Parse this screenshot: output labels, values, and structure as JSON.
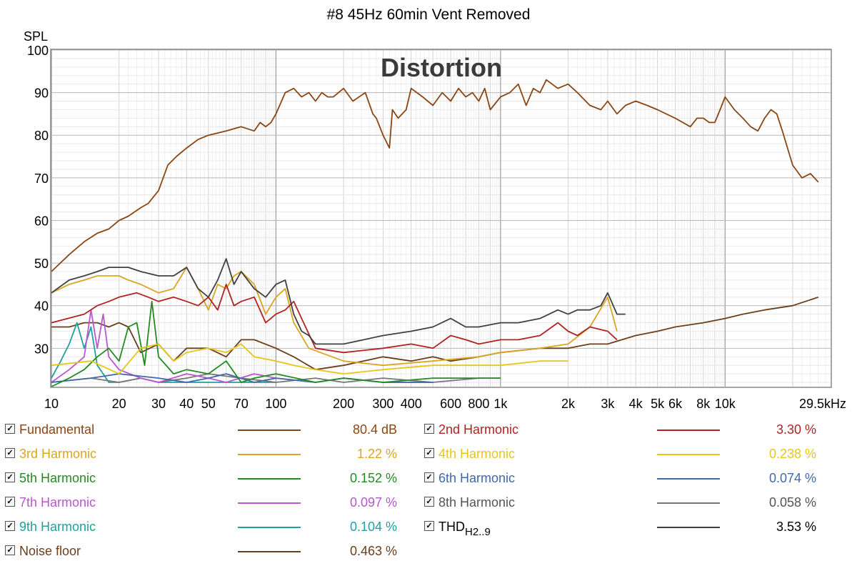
{
  "chart_data": {
    "type": "line",
    "title": "#8 45Hz 60min Vent Removed",
    "watermark": "Distortion",
    "ylabel": "SPL",
    "xlabel": "",
    "x_scale": "log",
    "xlim": [
      10,
      29500
    ],
    "ylim": [
      21,
      100
    ],
    "y_ticks": [
      100,
      90,
      80,
      70,
      60,
      50,
      40,
      30
    ],
    "x_ticks": [
      {
        "v": 10,
        "label": "10"
      },
      {
        "v": 20,
        "label": "20"
      },
      {
        "v": 30,
        "label": "30"
      },
      {
        "v": 40,
        "label": "40"
      },
      {
        "v": 50,
        "label": "50"
      },
      {
        "v": 70,
        "label": "70"
      },
      {
        "v": 100,
        "label": "100"
      },
      {
        "v": 200,
        "label": "200"
      },
      {
        "v": 300,
        "label": "300"
      },
      {
        "v": 400,
        "label": "400"
      },
      {
        "v": 600,
        "label": "600"
      },
      {
        "v": 800,
        "label": "800"
      },
      {
        "v": 1000,
        "label": "1k"
      },
      {
        "v": 2000,
        "label": "2k"
      },
      {
        "v": 3000,
        "label": "3k"
      },
      {
        "v": 4000,
        "label": "4k"
      },
      {
        "v": 5000,
        "label": "5k"
      },
      {
        "v": 6000,
        "label": "6k"
      },
      {
        "v": 8000,
        "label": "8k"
      },
      {
        "v": 10000,
        "label": "10k"
      },
      {
        "v": 29500,
        "label": "29.5kHz"
      }
    ],
    "grid": true,
    "series": [
      {
        "name": "Fundamental",
        "color": "#8B4513",
        "x": [
          10,
          12,
          14,
          16,
          18,
          20,
          22,
          25,
          27,
          30,
          33,
          36,
          40,
          45,
          50,
          60,
          70,
          80,
          85,
          90,
          95,
          100,
          110,
          120,
          130,
          140,
          150,
          160,
          170,
          180,
          200,
          220,
          250,
          270,
          280,
          300,
          320,
          330,
          350,
          380,
          400,
          450,
          500,
          550,
          600,
          650,
          700,
          750,
          800,
          850,
          900,
          1000,
          1100,
          1200,
          1300,
          1400,
          1500,
          1600,
          1800,
          2000,
          2200,
          2500,
          2800,
          3000,
          3300,
          3600,
          4000,
          4500,
          5000,
          6000,
          7000,
          7500,
          8000,
          8500,
          9000,
          9500,
          10000,
          11000,
          12000,
          13000,
          14000,
          15000,
          16000,
          17000,
          18000,
          20000,
          22000,
          24000,
          26000
        ],
        "y": [
          48,
          52,
          55,
          57,
          58,
          60,
          61,
          63,
          64,
          67,
          73,
          75,
          77,
          79,
          80,
          81,
          82,
          81,
          83,
          82,
          83,
          85,
          90,
          91,
          89,
          90,
          88,
          90,
          89,
          89,
          91,
          88,
          90,
          85,
          84,
          80,
          77,
          86,
          84,
          86,
          91,
          89,
          87,
          90,
          88,
          91,
          89,
          90,
          88,
          91,
          86,
          89,
          90,
          92,
          87,
          91,
          90,
          93,
          91,
          92,
          90,
          87,
          86,
          88,
          85,
          87,
          88,
          87,
          86,
          84,
          82,
          84,
          84,
          83,
          83,
          86,
          89,
          86,
          84,
          82,
          81,
          84,
          86,
          85,
          81,
          73,
          70,
          71,
          69
        ],
        "legend_value": "80.4 dB"
      },
      {
        "name": "2nd Harmonic",
        "color": "#B22222",
        "x": [
          10,
          14,
          16,
          18,
          20,
          24,
          27,
          30,
          35,
          40,
          45,
          50,
          55,
          60,
          65,
          70,
          80,
          90,
          100,
          110,
          120,
          130,
          150,
          200,
          300,
          400,
          500,
          600,
          700,
          800,
          1000,
          1200,
          1500,
          1800,
          2000,
          2200,
          2500,
          3000,
          3300
        ],
        "y": [
          36,
          38,
          40,
          41,
          42,
          43,
          42,
          41,
          42,
          41,
          40,
          42,
          39,
          45,
          40,
          41,
          42,
          36,
          38,
          39,
          41,
          37,
          30,
          29,
          30,
          31,
          30,
          33,
          32,
          31,
          32,
          32,
          33,
          36,
          34,
          33,
          35,
          34,
          32
        ],
        "legend_value": "3.30 %"
      },
      {
        "name": "3rd Harmonic",
        "color": "#DAA520",
        "x": [
          10,
          12,
          14,
          16,
          18,
          20,
          22,
          25,
          30,
          35,
          40,
          45,
          50,
          55,
          60,
          65,
          70,
          80,
          90,
          100,
          110,
          120,
          140,
          200,
          300,
          500,
          800,
          1000,
          1500,
          2000,
          2500,
          3000,
          3300
        ],
        "y": [
          43,
          45,
          46,
          47,
          47,
          47,
          46,
          45,
          43,
          44,
          49,
          44,
          39,
          45,
          44,
          47,
          48,
          45,
          38,
          42,
          44,
          36,
          30,
          27,
          26,
          27,
          28,
          29,
          30,
          31,
          35,
          42,
          34
        ],
        "legend_value": "1.22 %"
      },
      {
        "name": "4th Harmonic",
        "color": "#E6C619",
        "x": [
          10,
          15,
          20,
          25,
          30,
          35,
          40,
          50,
          60,
          70,
          80,
          100,
          120,
          150,
          200,
          300,
          500,
          800,
          1000,
          1500,
          2000
        ],
        "y": [
          26,
          27,
          24,
          30,
          31,
          27,
          29,
          30,
          29,
          31,
          28,
          27,
          26,
          25,
          24,
          25,
          26,
          26,
          26,
          27,
          27
        ],
        "legend_value": "0.238 %"
      },
      {
        "name": "5th Harmonic",
        "color": "#228B22",
        "x": [
          10,
          12,
          14,
          16,
          18,
          20,
          22,
          24,
          26,
          28,
          30,
          35,
          40,
          50,
          60,
          70,
          80,
          100,
          150,
          200,
          300,
          500,
          1000
        ],
        "y": [
          21,
          23,
          25,
          28,
          30,
          27,
          35,
          36,
          26,
          41,
          28,
          24,
          25,
          24,
          27,
          22,
          23,
          24,
          22,
          23,
          22,
          23,
          23
        ],
        "legend_value": "0.152 %"
      },
      {
        "name": "6th Harmonic",
        "color": "#4169A8",
        "x": [
          10,
          15,
          20,
          30,
          40,
          50,
          60,
          80,
          100,
          150,
          200,
          300,
          500
        ],
        "y": [
          22,
          23,
          24,
          23,
          22,
          23,
          24,
          22,
          23,
          22,
          23,
          22,
          22
        ],
        "legend_value": "0.074 %"
      },
      {
        "name": "7th Harmonic",
        "color": "#BA55D3",
        "x": [
          10,
          12,
          14,
          15,
          16,
          17,
          18,
          20,
          25,
          30,
          40,
          50,
          60,
          80,
          100,
          150,
          200,
          300,
          500
        ],
        "y": [
          22,
          25,
          28,
          39,
          30,
          38,
          28,
          25,
          23,
          22,
          24,
          23,
          22,
          24,
          23,
          22,
          23,
          22,
          22
        ],
        "legend_value": "0.097 %"
      },
      {
        "name": "8th Harmonic",
        "color": "#777777",
        "x": [
          10,
          15,
          20,
          25,
          30,
          40,
          50,
          70,
          100,
          150,
          200,
          300,
          500,
          800,
          1000
        ],
        "y": [
          22,
          23,
          22,
          23,
          22,
          23,
          24,
          23,
          22,
          23,
          22,
          23,
          22,
          23,
          23
        ],
        "legend_value": "0.058 %"
      },
      {
        "name": "9th Harmonic",
        "color": "#20A0A0",
        "x": [
          10,
          11,
          12,
          13,
          14,
          15,
          16,
          17,
          18,
          20,
          25,
          30,
          50,
          100
        ],
        "y": [
          23,
          27,
          31,
          36,
          30,
          35,
          26,
          24,
          22,
          22,
          23,
          22,
          22,
          22
        ],
        "legend_value": "0.104 %"
      },
      {
        "name": "THD",
        "color": "#404040",
        "x": [
          10,
          12,
          14,
          16,
          18,
          20,
          22,
          25,
          30,
          35,
          40,
          45,
          50,
          55,
          60,
          65,
          70,
          80,
          90,
          100,
          110,
          120,
          130,
          140,
          150,
          200,
          300,
          400,
          500,
          600,
          700,
          800,
          1000,
          1200,
          1500,
          1800,
          2000,
          2200,
          2500,
          2800,
          3000,
          3300,
          3600
        ],
        "y": [
          43,
          46,
          47,
          48,
          49,
          49,
          49,
          48,
          47,
          47,
          49,
          44,
          42,
          46,
          51,
          45,
          48,
          44,
          42,
          45,
          46,
          38,
          34,
          33,
          31,
          31,
          33,
          34,
          35,
          37,
          35,
          35,
          36,
          36,
          37,
          39,
          38,
          39,
          39,
          40,
          43,
          38,
          38
        ],
        "legend_value": "3.53 %"
      },
      {
        "name": "Noise floor",
        "color": "#6B3E1A",
        "x": [
          10,
          12,
          14,
          16,
          18,
          20,
          22,
          25,
          30,
          35,
          40,
          50,
          60,
          70,
          80,
          100,
          120,
          150,
          200,
          300,
          400,
          500,
          600,
          800,
          1000,
          1500,
          2000,
          2500,
          3000,
          4000,
          5000,
          6000,
          8000,
          10000,
          12000,
          15000,
          20000,
          26000
        ],
        "y": [
          35,
          35,
          36,
          36,
          35,
          36,
          35,
          29,
          31,
          27,
          30,
          30,
          28,
          32,
          32,
          30,
          28,
          25,
          26,
          28,
          27,
          28,
          27,
          28,
          29,
          30,
          30,
          31,
          31,
          33,
          34,
          35,
          36,
          37,
          38,
          39,
          40,
          42
        ],
        "legend_value": "0.463 %"
      }
    ]
  },
  "legend": {
    "items": [
      {
        "label": "Fundamental",
        "value": "80.4 dB",
        "color": "#8B4513"
      },
      {
        "label": "2nd Harmonic",
        "value": "3.30 %",
        "color": "#B22222"
      },
      {
        "label": "3rd Harmonic",
        "value": "1.22 %",
        "color": "#DAA520"
      },
      {
        "label": "4th Harmonic",
        "value": "0.238 %",
        "color": "#E6C619"
      },
      {
        "label": "5th Harmonic",
        "value": "0.152 %",
        "color": "#228B22"
      },
      {
        "label": "6th Harmonic",
        "value": "0.074 %",
        "color": "#4169A8"
      },
      {
        "label": "7th Harmonic",
        "value": "0.097 %",
        "color": "#BA55D3"
      },
      {
        "label": "8th Harmonic",
        "value": "0.058 %",
        "color": "#777777"
      },
      {
        "label": "9th Harmonic",
        "value": "0.104 %",
        "color": "#20A0A0"
      },
      {
        "label": "THD",
        "label_sub": "H2..9",
        "value": "3.53 %",
        "color": "#404040"
      },
      {
        "label": "Noise floor",
        "value": "0.463 %",
        "color": "#6B3E1A"
      }
    ],
    "checkbox_state": "checked"
  }
}
